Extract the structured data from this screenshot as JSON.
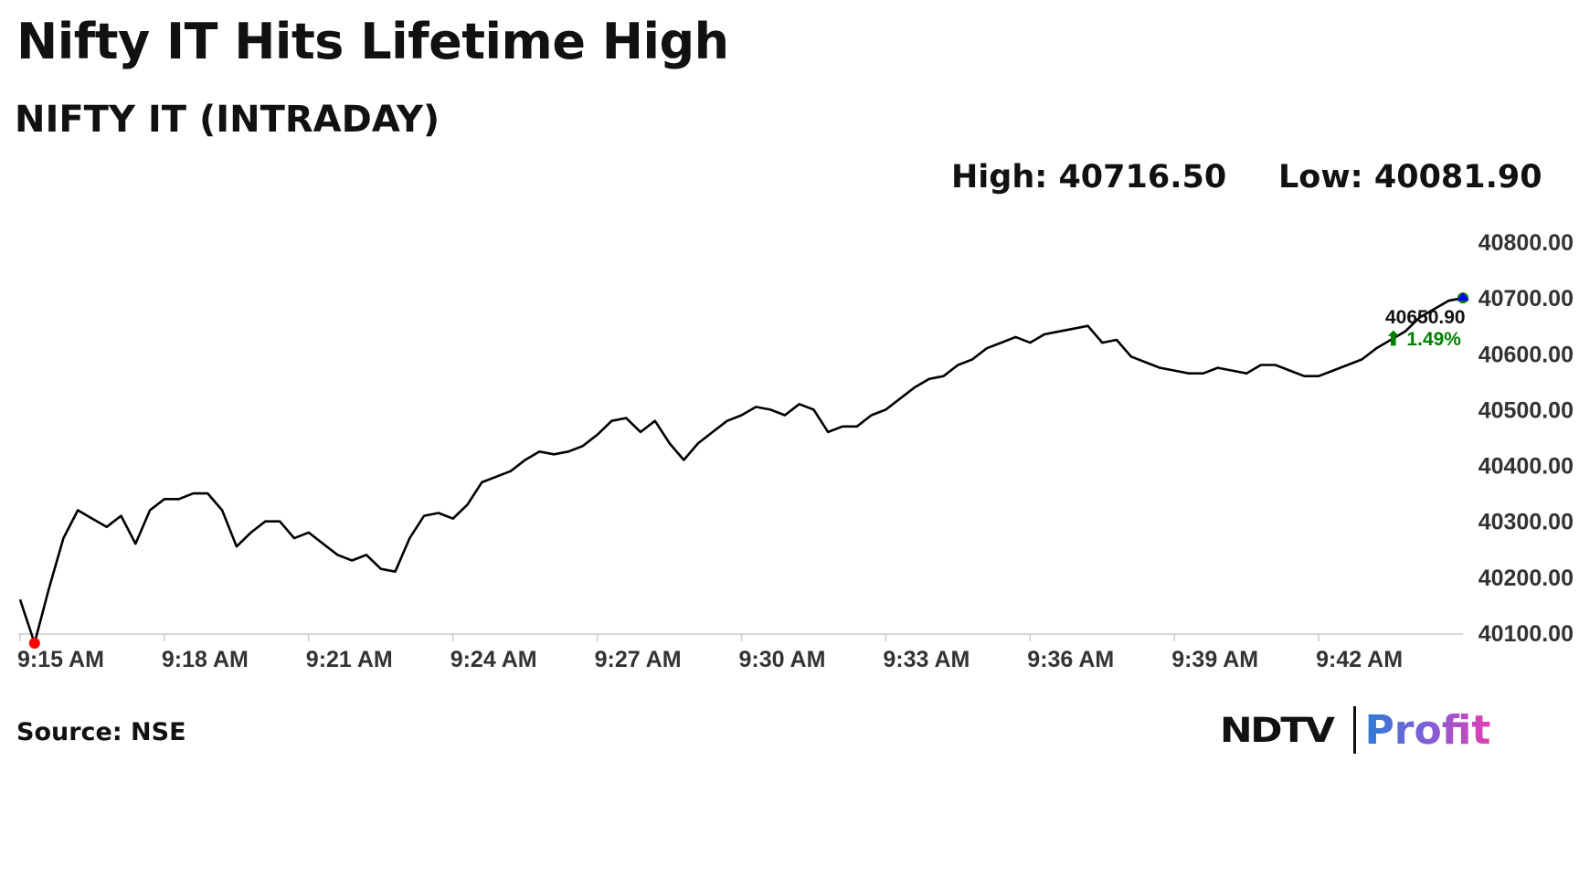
{
  "title": "Nifty IT Hits Lifetime High",
  "subtitle": "NIFTY IT (INTRADAY)",
  "high_label": "High: 40716.50",
  "low_label": "Low: 40081.90",
  "source": "Source: NSE",
  "logo": {
    "ndtv": "NDTV",
    "profit": "Profit"
  },
  "colors": {
    "line": "#000000",
    "low_marker": "#ff0000",
    "high_marker": "#008000",
    "last_marker": "#0000ff",
    "change": "#008000",
    "axis": "#cccccc"
  },
  "chart_data": {
    "type": "line",
    "title": "NIFTY IT (INTRADAY)",
    "x_tick_labels": [
      "9:15 AM",
      "9:18 AM",
      "9:21 AM",
      "9:24 AM",
      "9:27 AM",
      "9:30 AM",
      "9:33 AM",
      "9:36 AM",
      "9:39 AM",
      "9:42 AM"
    ],
    "y_tick_labels": [
      "40800.00",
      "40700.00",
      "40600.00",
      "40500.00",
      "40400.00",
      "40300.00",
      "40200.00",
      "40100.00"
    ],
    "ylim": [
      40100,
      40800
    ],
    "xlim_minutes_after_open": [
      0,
      30
    ],
    "grid": false,
    "high": 40716.5,
    "low": 40081.9,
    "last_value_label": "40650.90",
    "change_label": "⬆ 1.49%",
    "series": [
      {
        "x_minutes": [
          0,
          0.3,
          0.6,
          0.9,
          1.2,
          1.5,
          1.8,
          2.1,
          2.4,
          2.7,
          3.0,
          3.3,
          3.6,
          3.9,
          4.2,
          4.5,
          4.8,
          5.1,
          5.4,
          5.7,
          6.0,
          6.3,
          6.6,
          6.9,
          7.2,
          7.5,
          7.8,
          8.1,
          8.4,
          8.7,
          9.0,
          9.3,
          9.6,
          9.9,
          10.2,
          10.5,
          10.8,
          11.1,
          11.4,
          11.7,
          12.0,
          12.3,
          12.6,
          12.9,
          13.2,
          13.5,
          13.8,
          14.1,
          14.4,
          14.7,
          15.0,
          15.3,
          15.6,
          15.9,
          16.2,
          16.5,
          16.8,
          17.1,
          17.4,
          17.7,
          18.0,
          18.3,
          18.6,
          18.9,
          19.2,
          19.5,
          19.8,
          20.1,
          20.4,
          20.7,
          21.0,
          21.3,
          21.6,
          21.9,
          22.2,
          22.5,
          22.8,
          23.1,
          23.4,
          23.7,
          24.0,
          24.3,
          24.6,
          24.9,
          25.2,
          25.5,
          25.8,
          26.1,
          26.4,
          26.7,
          27.0,
          27.3,
          27.6,
          27.9,
          28.2,
          28.5,
          28.8,
          29.1,
          29.4,
          29.7,
          30.0
        ],
        "y": [
          40160,
          40082,
          40180,
          40270,
          40320,
          40305,
          40290,
          40310,
          40260,
          40320,
          40340,
          40340,
          40350,
          40350,
          40320,
          40255,
          40280,
          40300,
          40300,
          40270,
          40280,
          40260,
          40240,
          40230,
          40240,
          40215,
          40210,
          40270,
          40310,
          40315,
          40305,
          40330,
          40370,
          40380,
          40390,
          40410,
          40425,
          40420,
          40425,
          40435,
          40455,
          40480,
          40485,
          40460,
          40480,
          40440,
          40410,
          40440,
          40460,
          40480,
          40490,
          40505,
          40500,
          40490,
          40510,
          40500,
          40460,
          40470,
          40470,
          40490,
          40500,
          40520,
          40540,
          40555,
          40560,
          40580,
          40590,
          40610,
          40620,
          40630,
          40620,
          40635,
          40640,
          40645,
          40650,
          40620,
          40625,
          40595,
          40585,
          40575,
          40570,
          40565,
          40565,
          40575,
          40570,
          40565,
          40580,
          40580,
          40570,
          40560,
          40560,
          40570,
          40580,
          40590,
          40610,
          40625,
          40640,
          40665,
          40680,
          40695,
          40700
        ]
      }
    ]
  }
}
